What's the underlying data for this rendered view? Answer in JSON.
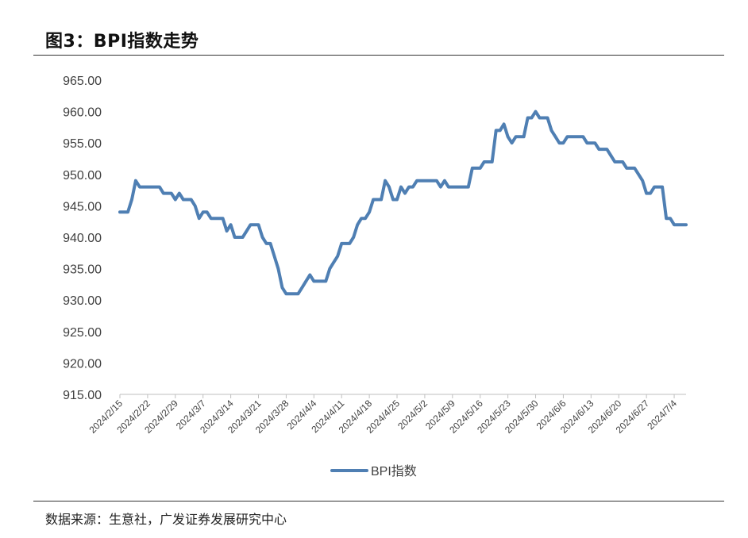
{
  "figure": {
    "title": "图3：BPI指数走势",
    "source": "数据来源：生意社，广发证券发展研究中心"
  },
  "chart_data": {
    "type": "line",
    "title": "",
    "xlabel": "",
    "ylabel": "",
    "ylim": [
      915,
      965
    ],
    "yticks": [
      "915.00",
      "920.00",
      "925.00",
      "930.00",
      "935.00",
      "940.00",
      "945.00",
      "950.00",
      "955.00",
      "960.00",
      "965.00"
    ],
    "xticks": [
      "2024/2/15",
      "2024/2/22",
      "2024/2/29",
      "2024/3/7",
      "2024/3/14",
      "2024/3/21",
      "2024/3/28",
      "2024/4/4",
      "2024/4/11",
      "2024/4/18",
      "2024/4/25",
      "2024/5/2",
      "2024/5/9",
      "2024/5/16",
      "2024/5/23",
      "2024/5/30",
      "2024/6/6",
      "2024/6/13",
      "2024/6/20",
      "2024/6/27",
      "2024/7/4"
    ],
    "grid": false,
    "legend_position": "bottom-center",
    "line_color": "#4f7fb3",
    "series": [
      {
        "name": "BPI指数",
        "x_day_offset": [
          0,
          1,
          2,
          3,
          4,
          5,
          6,
          7,
          8,
          9,
          10,
          11,
          12,
          13,
          14,
          15,
          16,
          17,
          18,
          19,
          20,
          21,
          22,
          23,
          24,
          25,
          26,
          27,
          28,
          29,
          30,
          31,
          32,
          33,
          34,
          35,
          36,
          37,
          38,
          39,
          40,
          41,
          42,
          43,
          44,
          45,
          46,
          47,
          48,
          49,
          50,
          51,
          52,
          53,
          54,
          55,
          56,
          57,
          58,
          59,
          60,
          61,
          62,
          63,
          64,
          65,
          66,
          67,
          68,
          69,
          70,
          71,
          72,
          73,
          74,
          75,
          76,
          77,
          78,
          79,
          80,
          81,
          82,
          83,
          84,
          85,
          86,
          87,
          88,
          89,
          90,
          91,
          92,
          93,
          94,
          95,
          96,
          97,
          98,
          99,
          100,
          101,
          102,
          103,
          104,
          105,
          106,
          107,
          108,
          109,
          110,
          111,
          112,
          113,
          114,
          115,
          116,
          117,
          118,
          119,
          120,
          121,
          122,
          123,
          124,
          125,
          126,
          127,
          128,
          129,
          130,
          131,
          132,
          133,
          134,
          135,
          136,
          137,
          138,
          139,
          140,
          141,
          142,
          143
        ],
        "values": [
          944,
          944,
          944,
          946,
          949,
          948,
          948,
          948,
          948,
          948,
          948,
          947,
          947,
          947,
          946,
          947,
          946,
          946,
          946,
          945,
          943,
          944,
          944,
          943,
          943,
          943,
          943,
          941,
          942,
          940,
          940,
          940,
          941,
          942,
          942,
          942,
          940,
          939,
          939,
          937,
          935,
          932,
          931,
          931,
          931,
          931,
          932,
          933,
          934,
          933,
          933,
          933,
          933,
          935,
          936,
          937,
          939,
          939,
          939,
          940,
          942,
          943,
          943,
          944,
          946,
          946,
          946,
          949,
          948,
          946,
          946,
          948,
          947,
          948,
          948,
          949,
          949,
          949,
          949,
          949,
          949,
          948,
          949,
          948,
          948,
          948,
          948,
          948,
          948,
          951,
          951,
          951,
          952,
          952,
          952,
          957,
          957,
          958,
          956,
          955,
          956,
          956,
          956,
          959,
          959,
          960,
          959,
          959,
          959,
          957,
          956,
          955,
          955,
          956,
          956,
          956,
          956,
          956,
          955,
          955,
          955,
          954,
          954,
          954,
          953,
          952,
          952,
          952,
          951,
          951,
          951,
          950,
          949,
          947,
          947,
          948,
          948,
          948,
          943,
          943,
          942,
          942,
          942,
          942
        ]
      }
    ]
  }
}
